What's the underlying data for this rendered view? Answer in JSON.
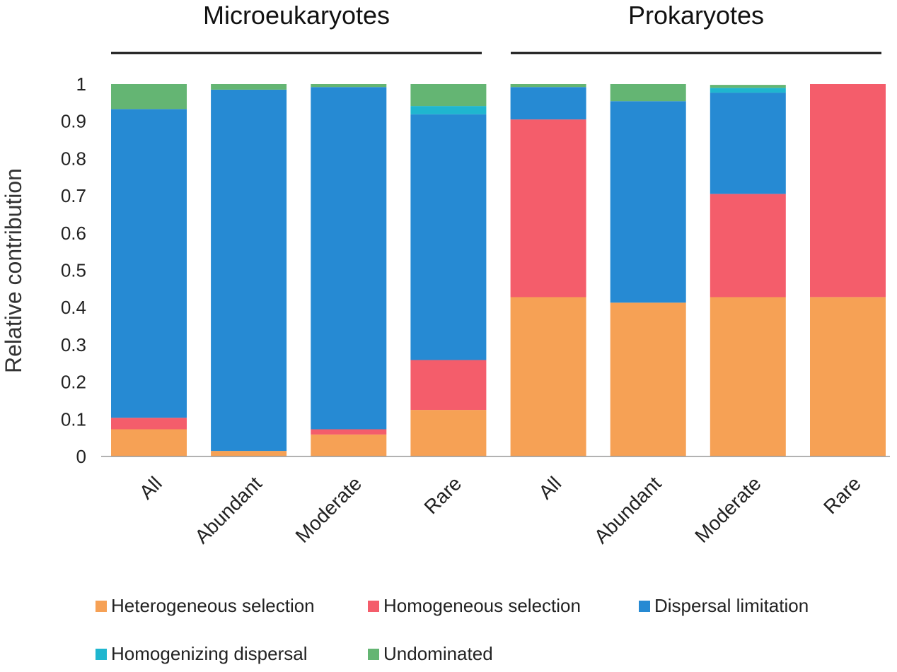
{
  "chart_data": {
    "type": "bar",
    "stacked": true,
    "ylabel": "Relative contribution",
    "ylim": [
      0,
      1
    ],
    "yticks": [
      "0",
      "0.1",
      "0.2",
      "0.3",
      "0.4",
      "0.5",
      "0.6",
      "0.7",
      "0.8",
      "0.9",
      "1"
    ],
    "groups": [
      {
        "title": "Microeukaryotes",
        "categories": [
          "All",
          "Abundant",
          "Moderate",
          "Rare"
        ]
      },
      {
        "title": "Prokaryotes",
        "categories": [
          "All",
          "Abundant",
          "Moderate",
          "Rare"
        ]
      }
    ],
    "series": [
      {
        "name": "Heterogeneous selection",
        "color": "#F6A155",
        "values": [
          0.073,
          0.015,
          0.059,
          0.125,
          0.428,
          0.413,
          0.428,
          0.428
        ]
      },
      {
        "name": "Homogeneous selection",
        "color": "#F45D6B",
        "values": [
          0.031,
          0.0,
          0.014,
          0.134,
          0.477,
          0.0,
          0.277,
          0.572
        ]
      },
      {
        "name": "Dispersal limitation",
        "color": "#268AD3",
        "values": [
          0.829,
          0.97,
          0.919,
          0.66,
          0.087,
          0.541,
          0.272,
          0.0
        ]
      },
      {
        "name": "Homogenizing dispersal",
        "color": "#1FB6CF",
        "values": [
          0.0,
          0.0,
          0.0,
          0.022,
          0.0,
          0.0,
          0.013,
          0.0
        ]
      },
      {
        "name": "Undominated",
        "color": "#64B573",
        "values": [
          0.067,
          0.015,
          0.008,
          0.059,
          0.008,
          0.046,
          0.008,
          0.0
        ]
      }
    ]
  }
}
